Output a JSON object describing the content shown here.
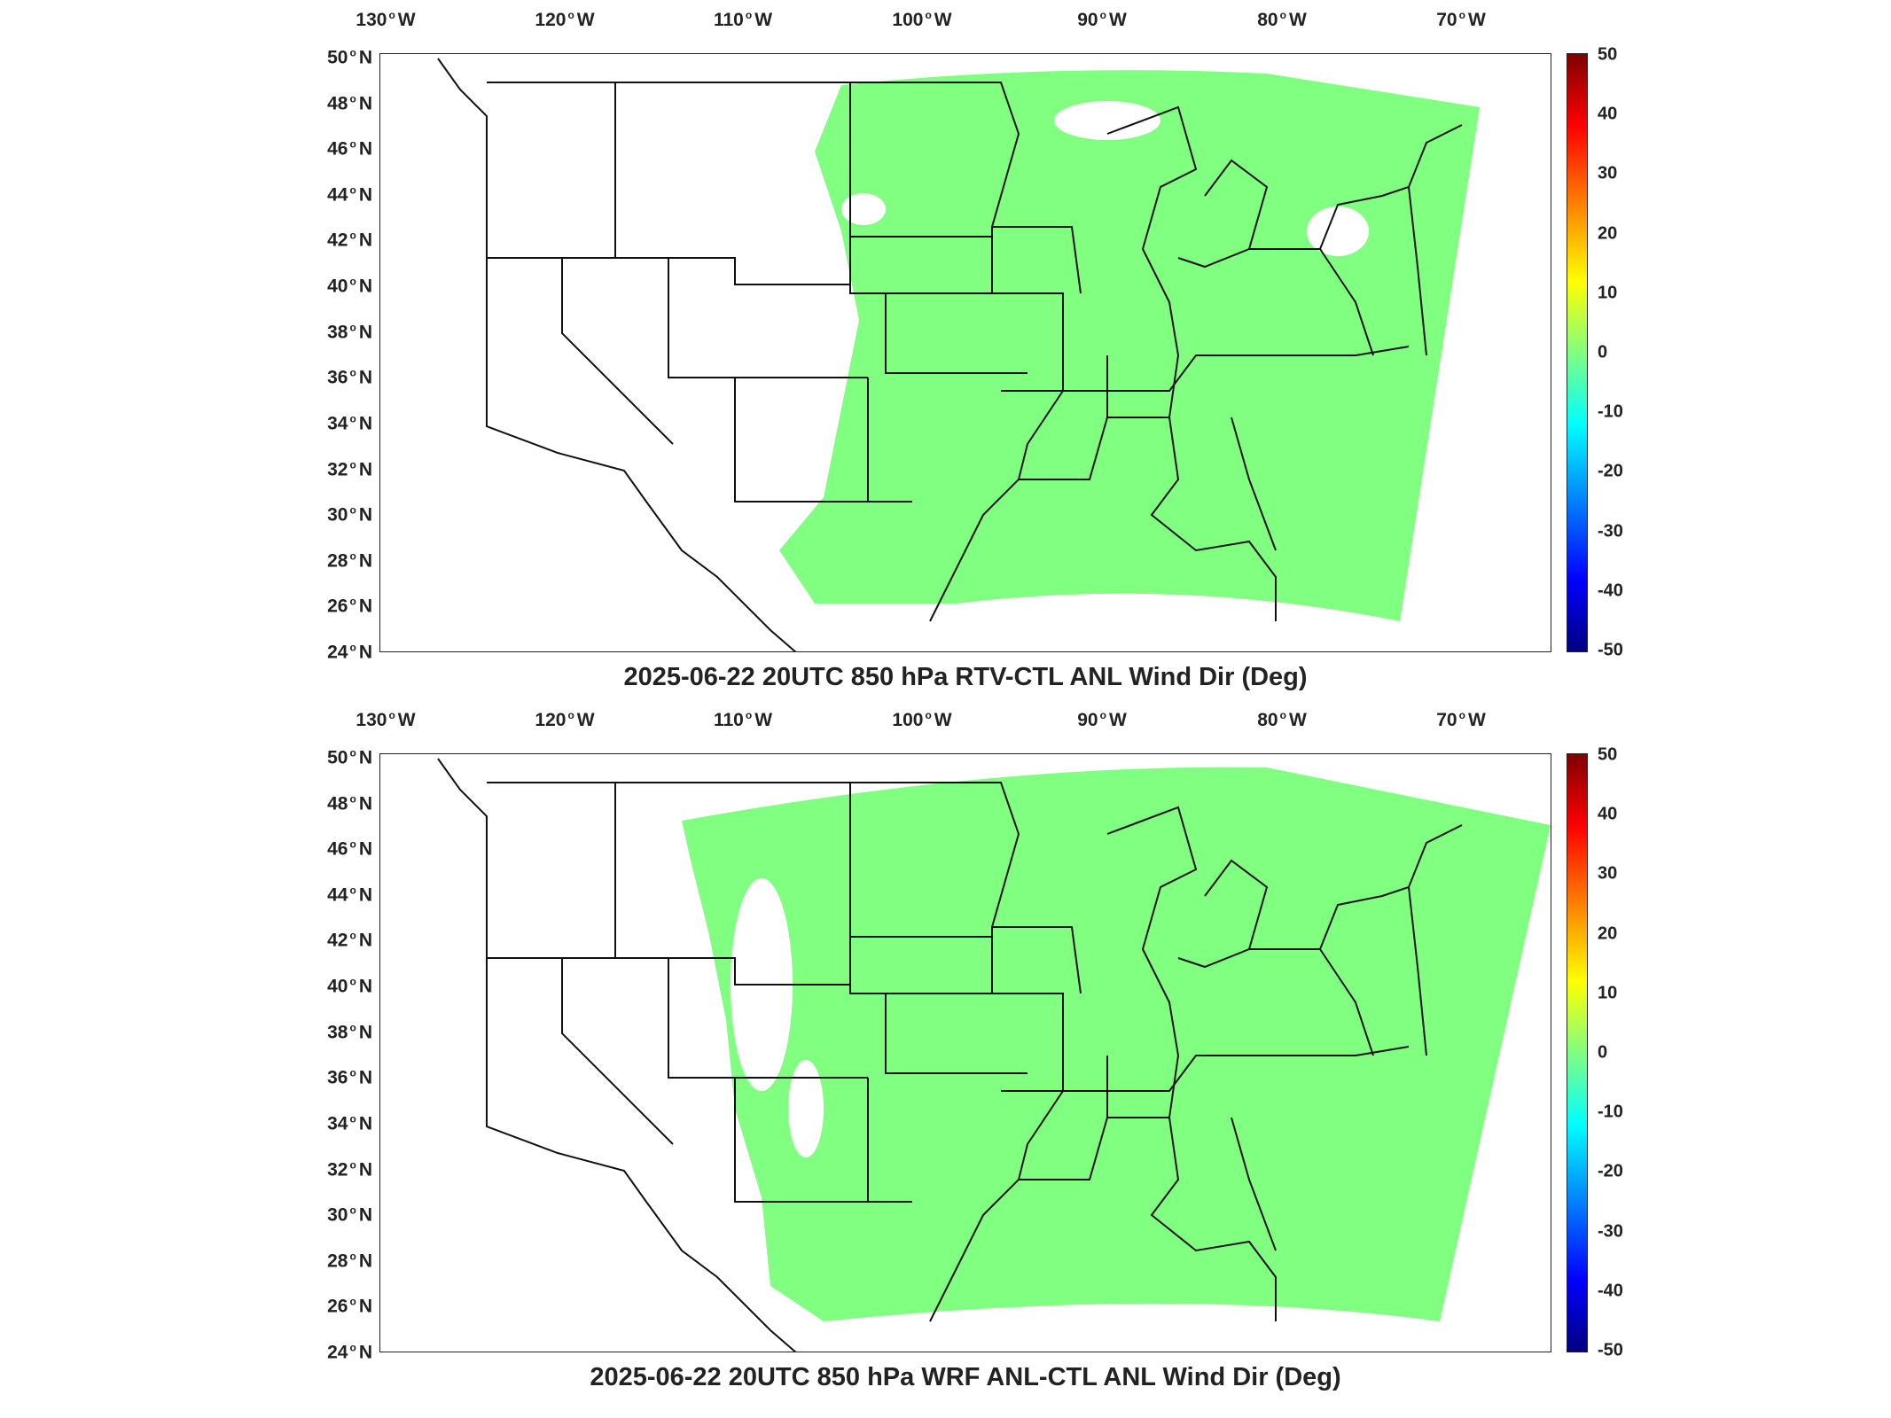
{
  "colors": {
    "field": "#80ff80",
    "boundary": "#111111",
    "background": "#ffffff"
  },
  "lon_labels": [
    {
      "v": "130",
      "h": "W"
    },
    {
      "v": "120",
      "h": "W"
    },
    {
      "v": "110",
      "h": "W"
    },
    {
      "v": "100",
      "h": "W"
    },
    {
      "v": "90",
      "h": "W"
    },
    {
      "v": "80",
      "h": "W"
    },
    {
      "v": "70",
      "h": "W"
    }
  ],
  "lat_labels": [
    {
      "v": "50",
      "h": "N"
    },
    {
      "v": "48",
      "h": "N"
    },
    {
      "v": "46",
      "h": "N"
    },
    {
      "v": "44",
      "h": "N"
    },
    {
      "v": "42",
      "h": "N"
    },
    {
      "v": "40",
      "h": "N"
    },
    {
      "v": "38",
      "h": "N"
    },
    {
      "v": "36",
      "h": "N"
    },
    {
      "v": "34",
      "h": "N"
    },
    {
      "v": "32",
      "h": "N"
    },
    {
      "v": "30",
      "h": "N"
    },
    {
      "v": "28",
      "h": "N"
    },
    {
      "v": "26",
      "h": "N"
    },
    {
      "v": "24",
      "h": "N"
    }
  ],
  "colorbar_ticks": [
    "50",
    "40",
    "30",
    "20",
    "10",
    "0",
    "-10",
    "-20",
    "-30",
    "-40",
    "-50"
  ],
  "colorbar_range": [
    -50,
    50
  ],
  "panels": [
    {
      "title": "2025-06-22 20UTC 850 hPa RTV-CTL ANL Wind Dir (Deg)",
      "field_value": 0
    },
    {
      "title": "2025-06-22 20UTC 850 hPa WRF ANL-CTL ANL Wind Dir (Deg)",
      "field_value": 0
    }
  ]
}
